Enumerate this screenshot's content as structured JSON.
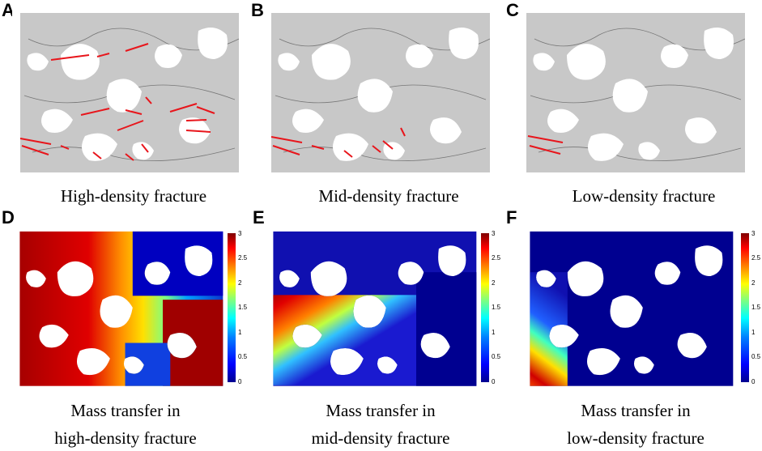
{
  "panels": [
    {
      "letter": "A",
      "caption": "High-density fracture"
    },
    {
      "letter": "B",
      "caption": "Mid-density fracture"
    },
    {
      "letter": "C",
      "caption": "Low-density fracture"
    },
    {
      "letter": "D",
      "caption_line1": "Mass transfer in",
      "caption_line2": "high-density fracture"
    },
    {
      "letter": "E",
      "caption_line1": "Mass transfer in",
      "caption_line2": "mid-density fracture"
    },
    {
      "letter": "F",
      "caption_line1": "Mass transfer in",
      "caption_line2": "low-density fracture"
    }
  ],
  "colorbar": {
    "ticks": [
      "3",
      "2.5",
      "2",
      "1.5",
      "1",
      "0.5",
      "0"
    ],
    "colors": [
      "#00008f",
      "#0000ff",
      "#007fff",
      "#00ffff",
      "#7fff7f",
      "#ffff00",
      "#ff7f00",
      "#ff0000",
      "#800000"
    ]
  },
  "fracture_color": "#e8151b",
  "rock_color": "#c8c8c8",
  "pore_color": "#ffffff"
}
